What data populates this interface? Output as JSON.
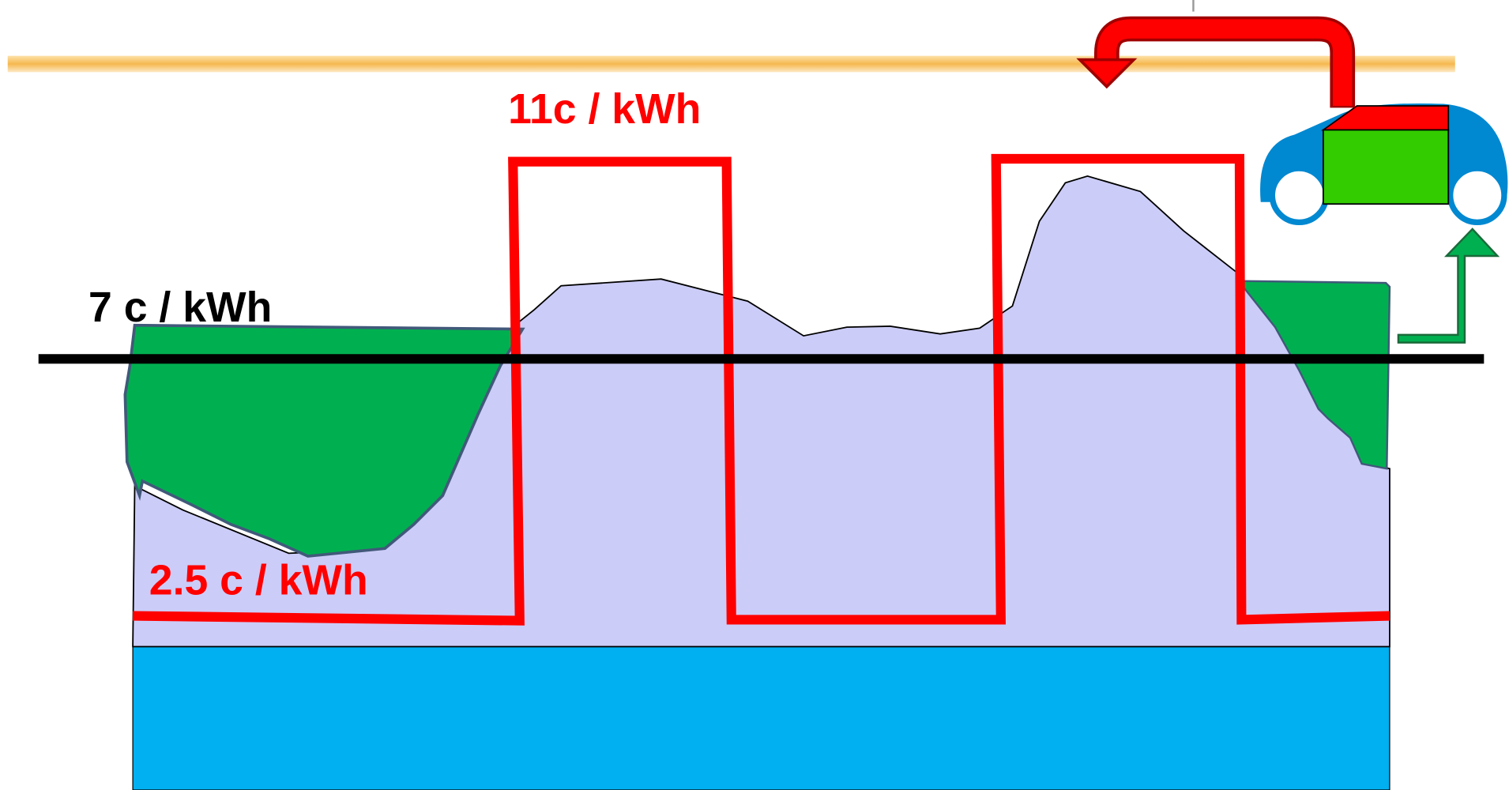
{
  "labels": {
    "peak_price": "11c / kWh",
    "mid_price": "7 c / kWh",
    "offpeak_price": "2.5 c / kWh"
  }
}
